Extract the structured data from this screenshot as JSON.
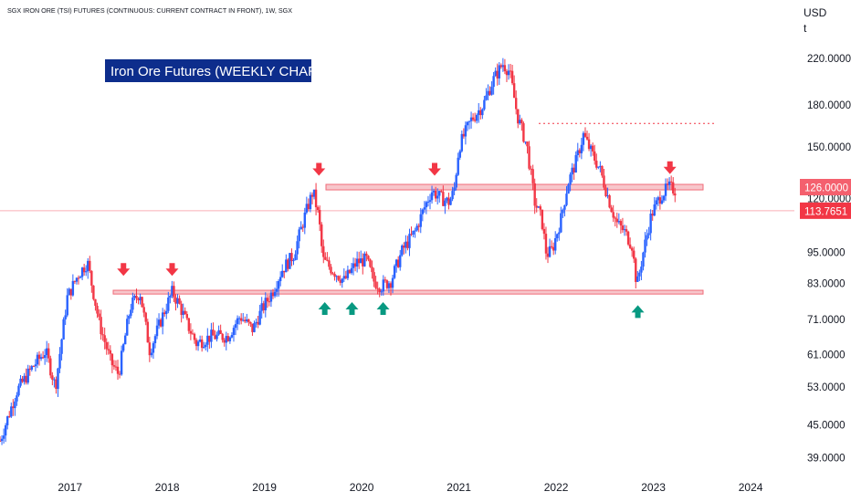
{
  "header": {
    "instrument": "SGX IRON ORE (TSI) FUTURES (CONTINUOUS: CURRENT CONTRACT IN FRONT), 1W, SGX",
    "currency": "USD",
    "unit": "t"
  },
  "annotation_title": "Iron Ore Futures (WEEKLY CHART)",
  "colors": {
    "up": "#2962ff",
    "down": "#f23645",
    "zone_fill": "#f7c6cb",
    "zone_line": "#f06b78",
    "arrow_down": "#f23645",
    "arrow_up": "#089981",
    "price_tag_126": "#f4606e",
    "price_tag_113": "#f23645",
    "title_bg": "#0d2d8c"
  },
  "price_tags": [
    {
      "label": "126.0000",
      "value": 126
    },
    {
      "label": "113.7651",
      "value": 113.7651
    }
  ],
  "chart_data": {
    "type": "candlestick",
    "y_scale": "log",
    "ylim": [
      37,
      240
    ],
    "xlim": [
      2016.28,
      2024.45
    ],
    "y_ticks": [
      {
        "label": "220.0000",
        "value": 220
      },
      {
        "label": "180.0000",
        "value": 180
      },
      {
        "label": "150.0000",
        "value": 150
      },
      {
        "label": "120.0000",
        "value": 120
      },
      {
        "label": "113.7651",
        "value": 113.7651
      },
      {
        "label": "95.0000",
        "value": 95
      },
      {
        "label": "83.0000",
        "value": 83
      },
      {
        "label": "71.0000",
        "value": 71
      },
      {
        "label": "61.0000",
        "value": 61
      },
      {
        "label": "53.0000",
        "value": 53
      },
      {
        "label": "45.0000",
        "value": 45
      },
      {
        "label": "39.0000",
        "value": 39
      }
    ],
    "x_ticks": [
      {
        "label": "2017",
        "value": 2017.0
      },
      {
        "label": "2018",
        "value": 2018.0
      },
      {
        "label": "2019",
        "value": 2019.0
      },
      {
        "label": "2020",
        "value": 2020.0
      },
      {
        "label": "2021",
        "value": 2021.0
      },
      {
        "label": "2022",
        "value": 2022.0
      },
      {
        "label": "2023",
        "value": 2023.0
      },
      {
        "label": "2024",
        "value": 2024.0
      }
    ],
    "price_path": [
      [
        2016.28,
        42
      ],
      [
        2016.45,
        52
      ],
      [
        2016.62,
        58
      ],
      [
        2016.75,
        62
      ],
      [
        2016.85,
        53
      ],
      [
        2016.97,
        78
      ],
      [
        2017.08,
        86
      ],
      [
        2017.18,
        91
      ],
      [
        2017.3,
        70
      ],
      [
        2017.42,
        59
      ],
      [
        2017.5,
        56
      ],
      [
        2017.62,
        75
      ],
      [
        2017.72,
        80
      ],
      [
        2017.82,
        62
      ],
      [
        2017.95,
        72
      ],
      [
        2018.05,
        80
      ],
      [
        2018.12,
        76
      ],
      [
        2018.2,
        70
      ],
      [
        2018.3,
        64
      ],
      [
        2018.45,
        66
      ],
      [
        2018.62,
        66
      ],
      [
        2018.75,
        72
      ],
      [
        2018.88,
        68
      ],
      [
        2018.97,
        74
      ],
      [
        2019.08,
        80
      ],
      [
        2019.18,
        88
      ],
      [
        2019.3,
        94
      ],
      [
        2019.42,
        112
      ],
      [
        2019.5,
        124
      ],
      [
        2019.56,
        110
      ],
      [
        2019.6,
        92
      ],
      [
        2019.7,
        88
      ],
      [
        2019.82,
        84
      ],
      [
        2019.95,
        91
      ],
      [
        2020.05,
        92
      ],
      [
        2020.12,
        84
      ],
      [
        2020.2,
        82
      ],
      [
        2020.3,
        84
      ],
      [
        2020.42,
        96
      ],
      [
        2020.55,
        104
      ],
      [
        2020.65,
        116
      ],
      [
        2020.72,
        124
      ],
      [
        2020.82,
        120
      ],
      [
        2020.9,
        118
      ],
      [
        2020.95,
        124
      ],
      [
        2021.0,
        150
      ],
      [
        2021.12,
        168
      ],
      [
        2021.25,
        180
      ],
      [
        2021.35,
        200
      ],
      [
        2021.45,
        215
      ],
      [
        2021.52,
        208
      ],
      [
        2021.6,
        172
      ],
      [
        2021.7,
        150
      ],
      [
        2021.78,
        118
      ],
      [
        2021.85,
        110
      ],
      [
        2021.9,
        94
      ],
      [
        2021.96,
        96
      ],
      [
        2022.05,
        110
      ],
      [
        2022.12,
        128
      ],
      [
        2022.2,
        140
      ],
      [
        2022.28,
        158
      ],
      [
        2022.35,
        148
      ],
      [
        2022.45,
        136
      ],
      [
        2022.55,
        118
      ],
      [
        2022.62,
        108
      ],
      [
        2022.7,
        104
      ],
      [
        2022.78,
        98
      ],
      [
        2022.83,
        82
      ],
      [
        2022.9,
        96
      ],
      [
        2022.98,
        112
      ],
      [
        2023.08,
        122
      ],
      [
        2023.16,
        126
      ],
      [
        2023.24,
        124
      ]
    ],
    "resistance_zone": [
      124.5,
      127.5
    ],
    "support_zone": [
      79.3,
      80.6
    ],
    "dotted_resistance": 166,
    "current_price": 113.7651
  },
  "overlays": {
    "down_arrows": [
      {
        "year": 2017.55,
        "price": 87.5
      },
      {
        "year": 2018.05,
        "price": 87.5
      },
      {
        "year": 2019.56,
        "price": 135
      },
      {
        "year": 2020.75,
        "price": 135
      },
      {
        "year": 2023.17,
        "price": 136
      }
    ],
    "up_arrows": [
      {
        "year": 2019.62,
        "price": 74.5
      },
      {
        "year": 2019.9,
        "price": 74.5
      },
      {
        "year": 2020.22,
        "price": 74.5
      },
      {
        "year": 2022.84,
        "price": 73.5
      }
    ]
  }
}
